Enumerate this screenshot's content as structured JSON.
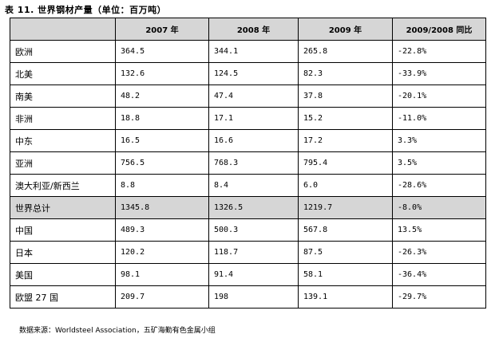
{
  "title": "表 11.  世界钢材产量（单位：百万吨）",
  "table": {
    "headers": [
      "",
      "2007 年",
      "2008 年",
      "2009 年",
      "2009/2008 同比"
    ],
    "rows": [
      [
        "欧洲",
        "364.5",
        "344.1",
        "265.8",
        "-22.8%"
      ],
      [
        "北美",
        "132.6",
        "124.5",
        "82.3",
        "-33.9%"
      ],
      [
        "南美",
        "48.2",
        "47.4",
        "37.8",
        "-20.1%"
      ],
      [
        "非洲",
        "18.8",
        "17.1",
        "15.2",
        "-11.0%"
      ],
      [
        "中东",
        "16.5",
        "16.6",
        "17.2",
        "3.3%"
      ],
      [
        "亚洲",
        "756.5",
        "768.3",
        "795.4",
        "3.5%"
      ],
      [
        "澳大利亚/新西兰",
        "8.8",
        "8.4",
        "6.0",
        "-28.6%"
      ],
      [
        "世界总计",
        "1345.8",
        "1326.5",
        "1219.7",
        "-8.0%"
      ],
      [
        "中国",
        "489.3",
        "500.3",
        "567.8",
        "13.5%"
      ],
      [
        "日本",
        "120.2",
        "118.7",
        "87.5",
        "-26.3%"
      ],
      [
        "美国",
        "98.1",
        "91.4",
        "58.1",
        "-36.4%"
      ],
      [
        "欧盟 27 国",
        "209.7",
        "198",
        "139.1",
        "-29.7%"
      ]
    ],
    "highlight_row": 7,
    "header_bg": "#d6d6d6",
    "highlight_bg": "#d6d6d6"
  },
  "source": "数据来源：Worldsteel Association，五矿海勤有色金属小组"
}
